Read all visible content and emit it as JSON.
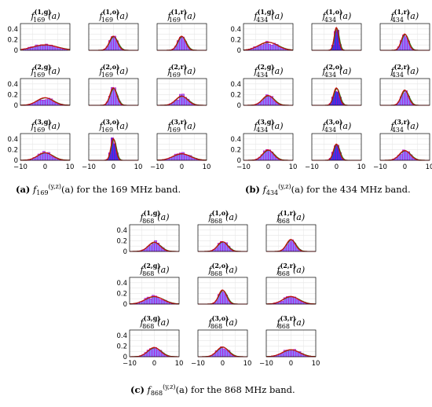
{
  "figure": {
    "captions": [
      {
        "label": "(a)",
        "func": "f",
        "sub": "169",
        "sup": "(y,z)",
        "arg": "(a)",
        "text": " for the 169 MHz band."
      },
      {
        "label": "(b)",
        "func": "f",
        "sub": "434",
        "sup": "(y,z)",
        "arg": "(a)",
        "text": " for the 434 MHz band."
      },
      {
        "label": "(c)",
        "func": "f",
        "sub": "868",
        "sup": "(y,z)",
        "arg": "(a)",
        "text": " for the 868 MHz band."
      }
    ]
  },
  "colors": {
    "bar_fill": "#7f6bff",
    "bar_dark": "#1f1fe0",
    "bar_edge": "#c000c0",
    "fit_red": "#cc1111",
    "fit_dark": "#5a3000",
    "fit_green": "#2e8b2e"
  },
  "chart_data": [
    {
      "type": "bar",
      "band": "169",
      "xlim": [
        -10,
        10
      ],
      "ylim": [
        0,
        0.5
      ],
      "xticks": [
        "−10",
        "0",
        "10"
      ],
      "yticks": [
        "0",
        "0.2",
        "0.4"
      ],
      "grid": true,
      "panels": [
        {
          "label": {
            "f": "f",
            "sub": "169",
            "sup": "(1,g)",
            "arg": "(a)"
          },
          "sigma": 5.0,
          "peak": 0.1,
          "jitter": 0.35
        },
        {
          "label": {
            "f": "f",
            "sub": "169",
            "sup": "(1,o)",
            "arg": "(a)"
          },
          "sigma": 1.6,
          "peak": 0.26,
          "jitter": 0.1
        },
        {
          "label": {
            "f": "f",
            "sub": "169",
            "sup": "(1,r)",
            "arg": "(a)"
          },
          "sigma": 1.6,
          "peak": 0.26,
          "jitter": 0.1
        },
        {
          "label": {
            "f": "f",
            "sub": "169",
            "sup": "(2,g)",
            "arg": "(a)"
          },
          "sigma": 3.2,
          "peak": 0.14,
          "jitter": 0.3
        },
        {
          "label": {
            "f": "f",
            "sub": "169",
            "sup": "(2,o)",
            "arg": "(a)"
          },
          "sigma": 1.4,
          "peak": 0.32,
          "jitter": 0.15
        },
        {
          "label": {
            "f": "f",
            "sub": "169",
            "sup": "(2,r)",
            "arg": "(a)"
          },
          "sigma": 2.4,
          "peak": 0.17,
          "jitter": 0.3
        },
        {
          "label": {
            "f": "f",
            "sub": "169",
            "sup": "(3,g)",
            "arg": "(a)"
          },
          "sigma": 3.0,
          "peak": 0.14,
          "jitter": 0.25
        },
        {
          "label": {
            "f": "f",
            "sub": "169",
            "sup": "(3,o)",
            "arg": "(a)"
          },
          "sigma": 1.0,
          "peak": 0.4,
          "jitter": 0.2
        },
        {
          "label": {
            "f": "f",
            "sub": "169",
            "sup": "(3,r)",
            "arg": "(a)"
          },
          "sigma": 3.5,
          "peak": 0.12,
          "jitter": 0.25
        }
      ]
    },
    {
      "type": "bar",
      "band": "434",
      "xlim": [
        -10,
        10
      ],
      "ylim": [
        0,
        0.5
      ],
      "xticks": [
        "−10",
        "0",
        "10"
      ],
      "yticks": [
        "0",
        "0.2",
        "0.4"
      ],
      "grid": true,
      "panels": [
        {
          "label": {
            "f": "f",
            "sub": "434",
            "sup": "(1,g)",
            "arg": "(a)"
          },
          "sigma": 3.8,
          "peak": 0.15,
          "jitter": 0.3
        },
        {
          "label": {
            "f": "f",
            "sub": "434",
            "sup": "(1,o)",
            "arg": "(a)"
          },
          "sigma": 0.9,
          "peak": 0.42,
          "jitter": 0.1
        },
        {
          "label": {
            "f": "f",
            "sub": "434",
            "sup": "(1,r)",
            "arg": "(a)"
          },
          "sigma": 1.4,
          "peak": 0.3,
          "jitter": 0.15
        },
        {
          "label": {
            "f": "f",
            "sub": "434",
            "sup": "(2,g)",
            "arg": "(a)"
          },
          "sigma": 2.3,
          "peak": 0.18,
          "jitter": 0.2
        },
        {
          "label": {
            "f": "f",
            "sub": "434",
            "sup": "(2,o)",
            "arg": "(a)"
          },
          "sigma": 1.2,
          "peak": 0.32,
          "jitter": 0.15
        },
        {
          "label": {
            "f": "f",
            "sub": "434",
            "sup": "(2,r)",
            "arg": "(a)"
          },
          "sigma": 1.5,
          "peak": 0.28,
          "jitter": 0.15
        },
        {
          "label": {
            "f": "f",
            "sub": "434",
            "sup": "(3,g)",
            "arg": "(a)"
          },
          "sigma": 2.2,
          "peak": 0.19,
          "jitter": 0.2
        },
        {
          "label": {
            "f": "f",
            "sub": "434",
            "sup": "(3,o)",
            "arg": "(a)"
          },
          "sigma": 1.2,
          "peak": 0.3,
          "jitter": 0.15
        },
        {
          "label": {
            "f": "f",
            "sub": "434",
            "sup": "(3,r)",
            "arg": "(a)"
          },
          "sigma": 2.2,
          "peak": 0.18,
          "jitter": 0.2
        }
      ]
    },
    {
      "type": "bar",
      "band": "868",
      "xlim": [
        -10,
        10
      ],
      "ylim": [
        0,
        0.5
      ],
      "xticks": [
        "−10",
        "0",
        "10"
      ],
      "yticks": [
        "0",
        "0.2",
        "0.4"
      ],
      "grid": true,
      "panels": [
        {
          "label": {
            "f": "f",
            "sub": "868",
            "sup": "(1,g)",
            "arg": "(a)"
          },
          "sigma": 2.4,
          "peak": 0.17,
          "jitter": 0.25
        },
        {
          "label": {
            "f": "f",
            "sub": "868",
            "sup": "(1,o)",
            "arg": "(a)"
          },
          "sigma": 2.0,
          "peak": 0.18,
          "jitter": 0.25
        },
        {
          "label": {
            "f": "f",
            "sub": "868",
            "sup": "(1,r)",
            "arg": "(a)"
          },
          "sigma": 1.8,
          "peak": 0.22,
          "jitter": 0.2
        },
        {
          "label": {
            "f": "f",
            "sub": "868",
            "sup": "(2,g)",
            "arg": "(a)"
          },
          "sigma": 3.6,
          "peak": 0.14,
          "jitter": 0.35
        },
        {
          "label": {
            "f": "f",
            "sub": "868",
            "sup": "(2,o)",
            "arg": "(a)"
          },
          "sigma": 1.6,
          "peak": 0.26,
          "jitter": 0.15
        },
        {
          "label": {
            "f": "f",
            "sub": "868",
            "sup": "(2,r)",
            "arg": "(a)"
          },
          "sigma": 3.2,
          "peak": 0.14,
          "jitter": 0.3
        },
        {
          "label": {
            "f": "f",
            "sub": "868",
            "sup": "(3,g)",
            "arg": "(a)"
          },
          "sigma": 2.6,
          "peak": 0.17,
          "jitter": 0.2
        },
        {
          "label": {
            "f": "f",
            "sub": "868",
            "sup": "(3,o)",
            "arg": "(a)"
          },
          "sigma": 2.3,
          "peak": 0.18,
          "jitter": 0.2
        },
        {
          "label": {
            "f": "f",
            "sub": "868",
            "sup": "(3,r)",
            "arg": "(a)"
          },
          "sigma": 3.4,
          "peak": 0.13,
          "jitter": 0.25
        }
      ]
    }
  ]
}
